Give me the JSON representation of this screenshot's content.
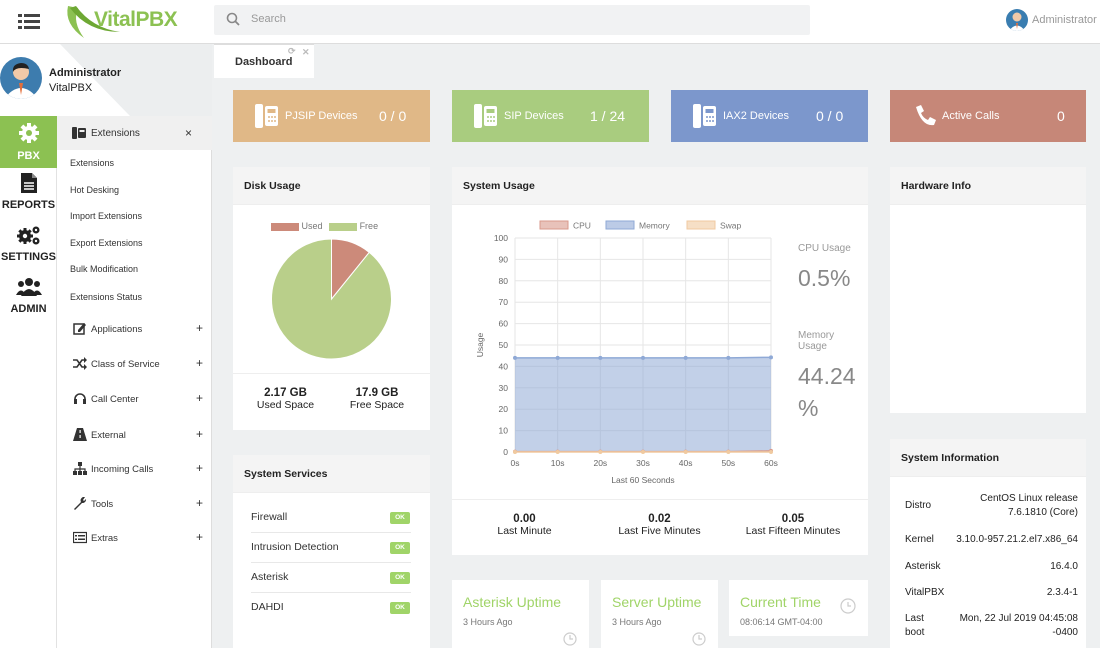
{
  "brand": {
    "name": "VitalPBX"
  },
  "search": {
    "placeholder": "Search"
  },
  "user": {
    "name": "Administrator",
    "org": "VitalPBX"
  },
  "iconbar": [
    {
      "id": "pbx",
      "label": "PBX",
      "icon": "gear-icon",
      "active": true
    },
    {
      "id": "reports",
      "label": "REPORTS",
      "icon": "document-icon"
    },
    {
      "id": "settings",
      "label": "SETTINGS",
      "icon": "gears-icon"
    },
    {
      "id": "admin",
      "label": "ADMIN",
      "icon": "users-icon"
    }
  ],
  "menu": {
    "header": "Extensions",
    "sub_items": [
      "Extensions",
      "Hot Desking",
      "Import Extensions",
      "Export Extensions",
      "Bulk Modification",
      "Extensions Status"
    ],
    "groups": [
      {
        "label": "Applications",
        "icon": "edit-icon"
      },
      {
        "label": "Class of Service",
        "icon": "shuffle-icon"
      },
      {
        "label": "Call Center",
        "icon": "headset-icon"
      },
      {
        "label": "External",
        "icon": "road-icon"
      },
      {
        "label": "Incoming Calls",
        "icon": "sitemap-icon"
      },
      {
        "label": "Tools",
        "icon": "wrench-icon"
      },
      {
        "label": "Extras",
        "icon": "list-icon"
      }
    ]
  },
  "tab": {
    "label": "Dashboard"
  },
  "tiles": [
    {
      "id": "pjsip",
      "label": "PJSIP Devices",
      "value": "0 / 0",
      "color": "#e0b887",
      "icon": "device-icon"
    },
    {
      "id": "sip",
      "label": "SIP Devices",
      "value": "1 / 24",
      "color": "#a9cc7f",
      "icon": "device-icon"
    },
    {
      "id": "iax2",
      "label": "IAX2 Devices",
      "value": "0 / 0",
      "color": "#7c97cc",
      "icon": "device-icon"
    },
    {
      "id": "calls",
      "label": "Active Calls",
      "value": "0",
      "color": "#c68778",
      "icon": "phone-icon"
    }
  ],
  "disk": {
    "title": "Disk Usage",
    "legend_used": "Used",
    "legend_free": "Free",
    "used_value": "2.17 GB",
    "used_label": "Used Space",
    "free_value": "17.9 GB",
    "free_label": "Free Space",
    "used_color": "#cc8a7a",
    "free_color": "#b9cf8a"
  },
  "services": {
    "title": "System Services",
    "items": [
      {
        "name": "Firewall",
        "status": "OK"
      },
      {
        "name": "Intrusion Detection",
        "status": "OK"
      },
      {
        "name": "Asterisk",
        "status": "OK"
      },
      {
        "name": "DAHDI",
        "status": "OK"
      }
    ]
  },
  "system_usage": {
    "title": "System Usage",
    "cpu_label": "CPU Usage",
    "cpu_value": "0.5%",
    "mem_label": "Memory Usage",
    "mem_value": "44.24 %",
    "loads": [
      {
        "value": "0.00",
        "label": "Last Minute"
      },
      {
        "value": "0.02",
        "label": "Last Five Minutes"
      },
      {
        "value": "0.05",
        "label": "Last Fifteen Minutes"
      }
    ]
  },
  "chart_data": {
    "type": "area",
    "x": [
      "0s",
      "10s",
      "20s",
      "30s",
      "40s",
      "50s",
      "60s"
    ],
    "xlabel": "Last 60 Seconds",
    "ylabel": "Usage",
    "ylim": [
      0,
      100
    ],
    "yticks": [
      0,
      10,
      20,
      30,
      40,
      50,
      60,
      70,
      80,
      90,
      100
    ],
    "legend": "top",
    "grid": true,
    "series": [
      {
        "name": "CPU",
        "color": "#d99a8c",
        "values": [
          0.2,
          0.2,
          0.2,
          0.2,
          0.2,
          0.2,
          0.5
        ]
      },
      {
        "name": "Memory",
        "color": "#8fa9d6",
        "values": [
          44,
          44,
          44,
          44,
          44,
          44,
          44.24
        ]
      },
      {
        "name": "Swap",
        "color": "#f0caa0",
        "values": [
          0,
          0,
          0,
          0,
          0,
          0,
          0
        ]
      }
    ]
  },
  "hardware": {
    "title": "Hardware Info"
  },
  "sysinfo": {
    "title": "System Information",
    "rows": [
      {
        "k": "Distro",
        "v": "CentOS Linux release 7.6.1810 (Core)"
      },
      {
        "k": "Kernel",
        "v": "3.10.0-957.21.2.el7.x86_64"
      },
      {
        "k": "Asterisk",
        "v": "16.4.0"
      },
      {
        "k": "VitalPBX",
        "v": "2.3.4-1"
      },
      {
        "k": "Last boot",
        "v": "Mon, 22 Jul 2019 04:45:08 -0400"
      }
    ]
  },
  "uptimes": [
    {
      "title": "Asterisk Uptime",
      "sub": "3 Hours Ago",
      "title_color": "#a0d468"
    },
    {
      "title": "Server Uptime",
      "sub": "3 Hours Ago",
      "title_color": "#a0d468"
    },
    {
      "title": "Current Time",
      "sub": "08:06:14 GMT-04:00",
      "title_color": "#a0d468"
    }
  ]
}
